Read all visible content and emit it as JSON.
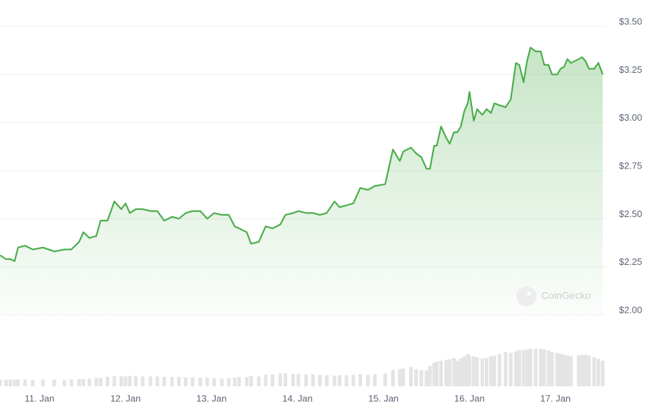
{
  "chart_data": {
    "type": "line",
    "x": [
      10.54,
      10.61,
      10.66,
      10.71,
      10.75,
      10.83,
      10.92,
      11.04,
      11.17,
      11.29,
      11.37,
      11.46,
      11.51,
      11.58,
      11.66,
      11.71,
      11.79,
      11.87,
      11.95,
      12.0,
      12.05,
      12.12,
      12.2,
      12.29,
      12.37,
      12.45,
      12.54,
      12.62,
      12.7,
      12.78,
      12.87,
      12.95,
      13.03,
      13.12,
      13.2,
      13.27,
      13.32,
      13.41,
      13.46,
      13.55,
      13.63,
      13.71,
      13.8,
      13.86,
      13.95,
      14.01,
      14.1,
      14.18,
      14.26,
      14.34,
      14.43,
      14.49,
      14.57,
      14.65,
      14.73,
      14.82,
      14.9,
      15.02,
      15.11,
      15.19,
      15.23,
      15.32,
      15.38,
      15.44,
      15.5,
      15.54,
      15.59,
      15.62,
      15.67,
      15.73,
      15.77,
      15.82,
      15.86,
      15.9,
      15.94,
      15.98,
      16.0,
      16.05,
      16.09,
      16.15,
      16.2,
      16.25,
      16.29,
      16.35,
      16.42,
      16.48,
      16.54,
      16.58,
      16.63,
      16.67,
      16.71,
      16.77,
      16.83,
      16.87,
      16.92,
      16.96,
      17.02,
      17.06,
      17.1,
      17.14,
      17.18,
      17.27,
      17.31,
      17.35,
      17.39,
      17.45,
      17.5,
      17.55
    ],
    "series": [
      {
        "color": "#4cad4c",
        "values": [
          2.31,
          2.29,
          2.29,
          2.28,
          2.35,
          2.36,
          2.34,
          2.35,
          2.33,
          2.34,
          2.34,
          2.38,
          2.43,
          2.4,
          2.41,
          2.49,
          2.49,
          2.59,
          2.55,
          2.58,
          2.53,
          2.55,
          2.55,
          2.54,
          2.54,
          2.49,
          2.51,
          2.5,
          2.53,
          2.54,
          2.54,
          2.5,
          2.53,
          2.52,
          2.52,
          2.46,
          2.45,
          2.43,
          2.37,
          2.38,
          2.46,
          2.45,
          2.47,
          2.52,
          2.53,
          2.54,
          2.53,
          2.53,
          2.52,
          2.53,
          2.59,
          2.56,
          2.57,
          2.58,
          2.66,
          2.65,
          2.67,
          2.68,
          2.86,
          2.8,
          2.85,
          2.87,
          2.84,
          2.82,
          2.76,
          2.76,
          2.88,
          2.88,
          2.98,
          2.92,
          2.89,
          2.95,
          2.95,
          2.98,
          3.06,
          3.1,
          3.16,
          3.01,
          3.07,
          3.04,
          3.07,
          3.05,
          3.1,
          3.09,
          3.08,
          3.12,
          3.31,
          3.3,
          3.21,
          3.32,
          3.39,
          3.37,
          3.37,
          3.3,
          3.3,
          3.25,
          3.25,
          3.28,
          3.29,
          3.33,
          3.31,
          3.33,
          3.34,
          3.32,
          3.28,
          3.28,
          3.31,
          3.25
        ]
      },
      {
        "type": "bar",
        "axis": "y2",
        "color": "#e4e4e4",
        "values": [
          16,
          15,
          16,
          15,
          16,
          16,
          15,
          16,
          16,
          15,
          16,
          17,
          17,
          18,
          19,
          20,
          22,
          24,
          24,
          23,
          24,
          24,
          23,
          23,
          23,
          22,
          22,
          22,
          21,
          21,
          20,
          20,
          19,
          18,
          19,
          20,
          22,
          21,
          24,
          23,
          27,
          28,
          30,
          30,
          29,
          29,
          28,
          28,
          27,
          26,
          25,
          26,
          26,
          27,
          28,
          27,
          28,
          30,
          38,
          40,
          42,
          45,
          40,
          38,
          37,
          48,
          55,
          58,
          60,
          62,
          63,
          66,
          60,
          65,
          70,
          75,
          72,
          70,
          68,
          65,
          66,
          70,
          72,
          75,
          80,
          78,
          82,
          85,
          84,
          86,
          88,
          88,
          88,
          86,
          84,
          80,
          78,
          76,
          74,
          72,
          70,
          72,
          73,
          74,
          72,
          68,
          64,
          60
        ]
      }
    ],
    "xlim": [
      10.54,
      17.55
    ],
    "xticks": [
      {
        "value": 11,
        "label": "11. Jan"
      },
      {
        "value": 12,
        "label": "12. Jan"
      },
      {
        "value": 13,
        "label": "13. Jan"
      },
      {
        "value": 14,
        "label": "14. Jan"
      },
      {
        "value": 15,
        "label": "15. Jan"
      },
      {
        "value": 16,
        "label": "16. Jan"
      },
      {
        "value": 17,
        "label": "17. Jan"
      }
    ],
    "ylim": [
      2.0,
      3.5
    ],
    "yticks": [
      {
        "value": 2.0,
        "label": "$2.00"
      },
      {
        "value": 2.25,
        "label": "$2.25"
      },
      {
        "value": 2.5,
        "label": "$2.50"
      },
      {
        "value": 2.75,
        "label": "$2.75"
      },
      {
        "value": 3.0,
        "label": "$3.00"
      },
      {
        "value": 3.25,
        "label": "$3.25"
      },
      {
        "value": 3.5,
        "label": "$3.50"
      }
    ],
    "y2lim": [
      0,
      100
    ],
    "grid": true,
    "watermark": "CoinGecko"
  }
}
